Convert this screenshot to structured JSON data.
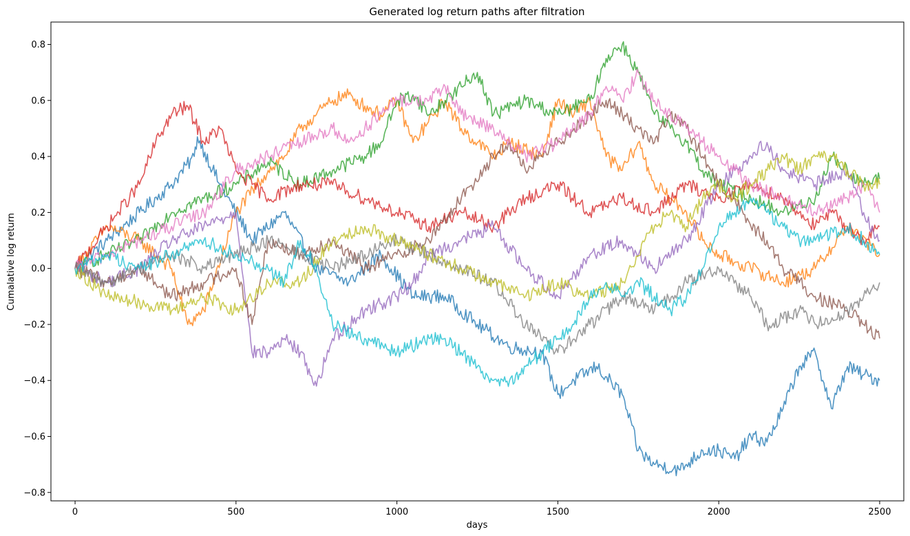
{
  "chart_data": {
    "type": "line",
    "title": "Generated log return paths after filtration",
    "xlabel": "days",
    "ylabel": "Cumalative log return",
    "xlim": [
      -75,
      2575
    ],
    "ylim": [
      -0.83,
      0.88
    ],
    "xticks": [
      0,
      500,
      1000,
      1500,
      2000,
      2500
    ],
    "yticks": [
      -0.8,
      -0.6,
      -0.4,
      -0.2,
      0.0,
      0.2,
      0.4,
      0.6,
      0.8
    ],
    "xtick_labels": [
      "0",
      "500",
      "1000",
      "1500",
      "2000",
      "2500"
    ],
    "ytick_labels": [
      "−0.8",
      "−0.6",
      "−0.4",
      "−0.2",
      "0.0",
      "0.2",
      "0.4",
      "0.6",
      "0.8"
    ],
    "grid": false,
    "legend": "none",
    "series": [
      {
        "color": "#1f77b4",
        "x": [
          0,
          100,
          200,
          300,
          370,
          380,
          450,
          550,
          650,
          750,
          850,
          950,
          1050,
          1150,
          1250,
          1350,
          1450,
          1500,
          1550,
          1620,
          1700,
          1750,
          1800,
          1880,
          1950,
          2000,
          2050,
          2100,
          2150,
          2200,
          2250,
          2300,
          2350,
          2400,
          2450,
          2500
        ],
        "y": [
          0,
          0.1,
          0.2,
          0.3,
          0.4,
          0.47,
          0.3,
          0.1,
          0.2,
          0.0,
          -0.05,
          0.05,
          -0.1,
          -0.1,
          -0.2,
          -0.28,
          -0.3,
          -0.45,
          -0.4,
          -0.35,
          -0.45,
          -0.65,
          -0.7,
          -0.72,
          -0.65,
          -0.65,
          -0.68,
          -0.6,
          -0.62,
          -0.5,
          -0.35,
          -0.3,
          -0.5,
          -0.35,
          -0.38,
          -0.4
        ]
      },
      {
        "color": "#ff7f0e",
        "x": [
          0,
          100,
          200,
          300,
          350,
          400,
          500,
          600,
          650,
          700,
          750,
          800,
          850,
          900,
          950,
          1000,
          1050,
          1150,
          1200,
          1250,
          1300,
          1350,
          1450,
          1500,
          1550,
          1600,
          1650,
          1700,
          1750,
          1800,
          1850,
          1900,
          1950,
          2000,
          2100,
          2200,
          2300,
          2400,
          2500
        ],
        "y": [
          0,
          0.15,
          0.1,
          0.0,
          -0.2,
          -0.15,
          0.2,
          0.35,
          0.4,
          0.5,
          0.55,
          0.6,
          0.62,
          0.58,
          0.55,
          0.6,
          0.45,
          0.6,
          0.5,
          0.45,
          0.4,
          0.45,
          0.4,
          0.6,
          0.55,
          0.6,
          0.4,
          0.35,
          0.45,
          0.3,
          0.25,
          0.2,
          0.1,
          0.05,
          0.0,
          -0.05,
          0.0,
          0.15,
          0.05
        ]
      },
      {
        "color": "#2ca02c",
        "x": [
          0,
          100,
          200,
          300,
          400,
          500,
          600,
          700,
          800,
          900,
          950,
          1000,
          1050,
          1100,
          1150,
          1200,
          1250,
          1300,
          1400,
          1500,
          1600,
          1650,
          1700,
          1750,
          1800,
          1850,
          1900,
          1950,
          2000,
          2100,
          2200,
          2300,
          2350,
          2400,
          2450,
          2500
        ],
        "y": [
          0,
          0.05,
          0.1,
          0.2,
          0.25,
          0.3,
          0.38,
          0.3,
          0.35,
          0.4,
          0.45,
          0.6,
          0.62,
          0.55,
          0.6,
          0.65,
          0.7,
          0.55,
          0.6,
          0.55,
          0.6,
          0.75,
          0.8,
          0.7,
          0.55,
          0.5,
          0.45,
          0.35,
          0.3,
          0.25,
          0.2,
          0.25,
          0.4,
          0.35,
          0.3,
          0.32
        ]
      },
      {
        "color": "#d62728",
        "x": [
          0,
          100,
          200,
          250,
          300,
          350,
          400,
          450,
          500,
          550,
          600,
          700,
          800,
          900,
          1000,
          1100,
          1200,
          1300,
          1400,
          1500,
          1600,
          1700,
          1800,
          1900,
          2000,
          2100,
          2200,
          2250,
          2300,
          2350,
          2400,
          2450,
          2500
        ],
        "y": [
          0,
          0.15,
          0.3,
          0.45,
          0.55,
          0.58,
          0.45,
          0.5,
          0.35,
          0.3,
          0.25,
          0.3,
          0.3,
          0.25,
          0.2,
          0.15,
          0.2,
          0.15,
          0.25,
          0.3,
          0.2,
          0.25,
          0.2,
          0.3,
          0.25,
          0.3,
          0.25,
          0.2,
          0.15,
          0.2,
          0.15,
          0.1,
          0.15
        ]
      },
      {
        "color": "#9467bd",
        "x": [
          0,
          100,
          200,
          300,
          400,
          500,
          550,
          600,
          650,
          700,
          750,
          800,
          900,
          1000,
          1050,
          1100,
          1200,
          1300,
          1400,
          1500,
          1600,
          1700,
          1800,
          1900,
          2000,
          2050,
          2100,
          2150,
          2200,
          2300,
          2400,
          2450,
          2500
        ],
        "y": [
          0,
          -0.05,
          0.0,
          0.1,
          0.15,
          0.2,
          -0.3,
          -0.3,
          -0.25,
          -0.3,
          -0.42,
          -0.25,
          -0.15,
          -0.1,
          -0.05,
          0.05,
          0.1,
          0.15,
          0.0,
          -0.1,
          0.05,
          0.1,
          0.0,
          0.1,
          0.3,
          0.35,
          0.4,
          0.45,
          0.35,
          0.3,
          0.35,
          0.2,
          0.1
        ]
      },
      {
        "color": "#8c564b",
        "x": [
          0,
          100,
          200,
          300,
          400,
          500,
          550,
          600,
          700,
          800,
          900,
          1000,
          1100,
          1200,
          1300,
          1350,
          1400,
          1450,
          1500,
          1550,
          1600,
          1650,
          1700,
          1750,
          1800,
          1850,
          1900,
          1950,
          2000,
          2050,
          2100,
          2150,
          2200,
          2250,
          2300,
          2400,
          2450,
          2500
        ],
        "y": [
          0,
          -0.05,
          0.0,
          -0.1,
          -0.05,
          0.0,
          -0.2,
          0.1,
          0.05,
          0.1,
          0.0,
          0.05,
          0.1,
          0.25,
          0.4,
          0.45,
          0.35,
          0.4,
          0.45,
          0.5,
          0.55,
          0.6,
          0.55,
          0.5,
          0.45,
          0.55,
          0.5,
          0.4,
          0.3,
          0.25,
          0.15,
          0.1,
          0.0,
          -0.05,
          -0.1,
          -0.15,
          -0.2,
          -0.25
        ]
      },
      {
        "color": "#e377c2",
        "x": [
          0,
          100,
          200,
          300,
          400,
          500,
          600,
          700,
          800,
          850,
          900,
          950,
          1000,
          1100,
          1150,
          1200,
          1300,
          1400,
          1500,
          1600,
          1650,
          1700,
          1750,
          1800,
          1850,
          1900,
          1950,
          2000,
          2050,
          2100,
          2200,
          2300,
          2400,
          2450,
          2500
        ],
        "y": [
          0,
          0.05,
          0.1,
          0.15,
          0.2,
          0.35,
          0.4,
          0.45,
          0.5,
          0.45,
          0.5,
          0.55,
          0.6,
          0.6,
          0.65,
          0.55,
          0.5,
          0.4,
          0.45,
          0.55,
          0.65,
          0.6,
          0.7,
          0.6,
          0.55,
          0.5,
          0.45,
          0.4,
          0.35,
          0.3,
          0.25,
          0.2,
          0.25,
          0.3,
          0.2
        ]
      },
      {
        "color": "#7f7f7f",
        "x": [
          0,
          100,
          200,
          300,
          400,
          500,
          600,
          700,
          800,
          900,
          1000,
          1100,
          1200,
          1300,
          1400,
          1500,
          1600,
          1700,
          1800,
          1900,
          2000,
          2100,
          2150,
          2200,
          2250,
          2300,
          2400,
          2450,
          2500
        ],
        "y": [
          0,
          -0.05,
          0.0,
          0.05,
          0.0,
          0.05,
          0.1,
          0.05,
          0.0,
          0.05,
          0.1,
          0.05,
          0.0,
          -0.05,
          -0.2,
          -0.3,
          -0.2,
          -0.1,
          -0.15,
          -0.05,
          0.0,
          -0.1,
          -0.2,
          -0.18,
          -0.15,
          -0.2,
          -0.15,
          -0.1,
          -0.05
        ]
      },
      {
        "color": "#bcbd22",
        "x": [
          0,
          100,
          200,
          300,
          400,
          500,
          600,
          700,
          800,
          900,
          1000,
          1100,
          1200,
          1300,
          1400,
          1500,
          1600,
          1700,
          1800,
          1850,
          1900,
          1950,
          2000,
          2050,
          2100,
          2150,
          2200,
          2250,
          2300,
          2350,
          2400,
          2450,
          2500
        ],
        "y": [
          0,
          -0.1,
          -0.12,
          -0.15,
          -0.1,
          -0.15,
          -0.05,
          -0.05,
          0.1,
          0.15,
          0.1,
          0.05,
          0.0,
          -0.05,
          -0.1,
          -0.05,
          -0.1,
          -0.05,
          0.15,
          0.2,
          0.15,
          0.25,
          0.3,
          0.25,
          0.3,
          0.35,
          0.4,
          0.35,
          0.4,
          0.4,
          0.35,
          0.3,
          0.3
        ]
      },
      {
        "color": "#17becf",
        "x": [
          0,
          100,
          200,
          300,
          400,
          500,
          600,
          650,
          700,
          750,
          800,
          900,
          1000,
          1100,
          1150,
          1200,
          1250,
          1300,
          1350,
          1400,
          1450,
          1500,
          1550,
          1600,
          1650,
          1700,
          1750,
          1800,
          1850,
          1900,
          1950,
          2000,
          2050,
          2100,
          2150,
          2200,
          2250,
          2300,
          2400,
          2450,
          2500
        ],
        "y": [
          0,
          0.05,
          0.0,
          0.05,
          0.1,
          0.05,
          0.0,
          -0.05,
          0.1,
          0.0,
          -0.2,
          -0.25,
          -0.3,
          -0.25,
          -0.25,
          -0.3,
          -0.35,
          -0.4,
          -0.4,
          -0.35,
          -0.3,
          -0.25,
          -0.2,
          -0.1,
          -0.05,
          -0.1,
          -0.05,
          -0.1,
          -0.15,
          -0.1,
          0.0,
          0.15,
          0.2,
          0.25,
          0.2,
          0.15,
          0.1,
          0.1,
          0.15,
          0.1,
          0.05
        ]
      }
    ]
  }
}
